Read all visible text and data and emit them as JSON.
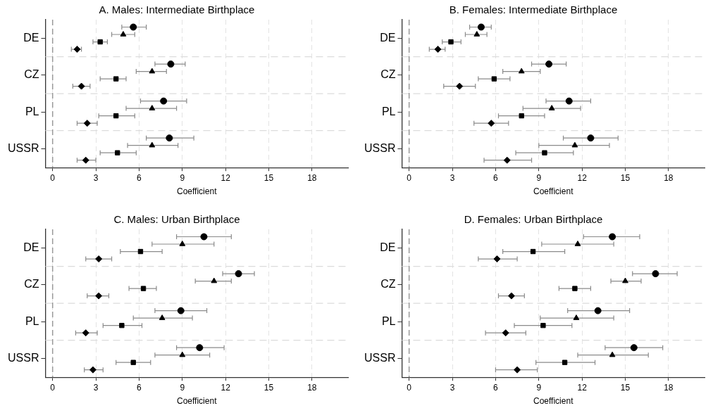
{
  "chart_data": [
    {
      "type": "scatter",
      "orientation": "horizontal",
      "title": "A. Males: Intermediate Birthplace",
      "xlabel": "Coefficient",
      "categories": [
        "DE",
        "CZ",
        "PL",
        "USSR"
      ],
      "xlim": [
        -0.5,
        20.5
      ],
      "xticks": [
        0,
        3,
        6,
        9,
        12,
        15,
        18
      ],
      "grid": true,
      "legend": false,
      "ref_lines": [
        {
          "axis": "x",
          "value": 0,
          "line_style": "dashed",
          "color": "#999999"
        }
      ],
      "series": [
        {
          "marker": "circle",
          "color": "#000000",
          "values": [
            5.6,
            8.2,
            7.7,
            8.1
          ],
          "errors": [
            [
              4.8,
              6.5
            ],
            [
              7.1,
              9.2
            ],
            [
              6.1,
              9.3
            ],
            [
              6.5,
              9.8
            ]
          ]
        },
        {
          "marker": "triangle",
          "color": "#000000",
          "values": [
            4.9,
            6.9,
            6.9,
            6.9
          ],
          "errors": [
            [
              4.1,
              5.7
            ],
            [
              5.8,
              7.9
            ],
            [
              5.1,
              8.6
            ],
            [
              5.2,
              8.7
            ]
          ]
        },
        {
          "marker": "square",
          "color": "#000000",
          "values": [
            3.3,
            4.4,
            4.4,
            4.5
          ],
          "errors": [
            [
              2.8,
              3.8
            ],
            [
              3.3,
              5.1
            ],
            [
              3.2,
              5.7
            ],
            [
              3.3,
              5.8
            ]
          ]
        },
        {
          "marker": "diamond",
          "color": "#000000",
          "values": [
            1.7,
            2.0,
            2.4,
            2.3
          ],
          "errors": [
            [
              1.3,
              2.0
            ],
            [
              1.4,
              2.6
            ],
            [
              1.7,
              3.1
            ],
            [
              1.7,
              3.0
            ]
          ]
        }
      ]
    },
    {
      "type": "scatter",
      "orientation": "horizontal",
      "title": "B. Females: Intermediate Birthplace",
      "xlabel": "Coefficient",
      "categories": [
        "DE",
        "CZ",
        "PL",
        "USSR"
      ],
      "xlim": [
        -0.5,
        20.5
      ],
      "xticks": [
        0,
        3,
        6,
        9,
        12,
        15,
        18
      ],
      "grid": true,
      "legend": false,
      "ref_lines": [
        {
          "axis": "x",
          "value": 0,
          "line_style": "dashed",
          "color": "#999999"
        }
      ],
      "series": [
        {
          "marker": "circle",
          "color": "#000000",
          "values": [
            5.0,
            9.7,
            11.1,
            12.6
          ],
          "errors": [
            [
              4.2,
              5.7
            ],
            [
              8.5,
              10.9
            ],
            [
              9.5,
              12.6
            ],
            [
              10.7,
              14.5
            ]
          ]
        },
        {
          "marker": "triangle",
          "color": "#000000",
          "values": [
            4.7,
            7.8,
            9.9,
            11.5
          ],
          "errors": [
            [
              3.9,
              5.4
            ],
            [
              6.5,
              9.1
            ],
            [
              7.9,
              11.9
            ],
            [
              9.0,
              13.9
            ]
          ]
        },
        {
          "marker": "square",
          "color": "#000000",
          "values": [
            2.9,
            5.9,
            7.8,
            9.4
          ],
          "errors": [
            [
              2.3,
              3.6
            ],
            [
              4.8,
              7.0
            ],
            [
              6.2,
              9.4
            ],
            [
              7.4,
              11.4
            ]
          ]
        },
        {
          "marker": "diamond",
          "color": "#000000",
          "values": [
            2.0,
            3.5,
            5.7,
            6.8
          ],
          "errors": [
            [
              1.4,
              2.5
            ],
            [
              2.4,
              4.6
            ],
            [
              4.5,
              6.9
            ],
            [
              5.2,
              8.5
            ]
          ]
        }
      ]
    },
    {
      "type": "scatter",
      "orientation": "horizontal",
      "title": "C. Males: Urban Birthplace",
      "xlabel": "Coefficient",
      "categories": [
        "DE",
        "CZ",
        "PL",
        "USSR"
      ],
      "xlim": [
        -0.5,
        20.5
      ],
      "xticks": [
        0,
        3,
        6,
        9,
        12,
        15,
        18
      ],
      "grid": true,
      "legend": false,
      "ref_lines": [
        {
          "axis": "x",
          "value": 0,
          "line_style": "dashed",
          "color": "#999999"
        }
      ],
      "series": [
        {
          "marker": "circle",
          "color": "#000000",
          "values": [
            10.5,
            12.9,
            8.9,
            10.2
          ],
          "errors": [
            [
              8.6,
              12.4
            ],
            [
              11.8,
              14.0
            ],
            [
              7.1,
              10.7
            ],
            [
              8.6,
              11.9
            ]
          ]
        },
        {
          "marker": "triangle",
          "color": "#000000",
          "values": [
            9.0,
            11.2,
            7.6,
            9.0
          ],
          "errors": [
            [
              6.9,
              11.2
            ],
            [
              9.9,
              12.4
            ],
            [
              5.6,
              9.7
            ],
            [
              7.1,
              10.9
            ]
          ]
        },
        {
          "marker": "square",
          "color": "#000000",
          "values": [
            6.1,
            6.3,
            4.8,
            5.6
          ],
          "errors": [
            [
              4.7,
              7.6
            ],
            [
              5.3,
              7.2
            ],
            [
              3.5,
              6.2
            ],
            [
              4.4,
              6.8
            ]
          ]
        },
        {
          "marker": "diamond",
          "color": "#000000",
          "values": [
            3.2,
            3.2,
            2.3,
            2.8
          ],
          "errors": [
            [
              2.3,
              4.1
            ],
            [
              2.4,
              3.9
            ],
            [
              1.6,
              3.1
            ],
            [
              2.2,
              3.5
            ]
          ]
        }
      ]
    },
    {
      "type": "scatter",
      "orientation": "horizontal",
      "title": "D. Females: Urban Birthplace",
      "xlabel": "Coefficient",
      "categories": [
        "DE",
        "CZ",
        "PL",
        "USSR"
      ],
      "xlim": [
        -0.5,
        20.5
      ],
      "xticks": [
        0,
        3,
        6,
        9,
        12,
        15,
        18
      ],
      "grid": true,
      "legend": false,
      "ref_lines": [
        {
          "axis": "x",
          "value": 0,
          "line_style": "dashed",
          "color": "#999999"
        }
      ],
      "series": [
        {
          "marker": "circle",
          "color": "#000000",
          "values": [
            14.1,
            17.1,
            13.1,
            15.6
          ],
          "errors": [
            [
              12.1,
              16.0
            ],
            [
              15.5,
              18.6
            ],
            [
              11.0,
              15.3
            ],
            [
              13.6,
              17.6
            ]
          ]
        },
        {
          "marker": "triangle",
          "color": "#000000",
          "values": [
            11.7,
            15.0,
            11.6,
            14.1
          ],
          "errors": [
            [
              9.2,
              14.2
            ],
            [
              14.0,
              16.1
            ],
            [
              9.1,
              14.2
            ],
            [
              11.7,
              16.6
            ]
          ]
        },
        {
          "marker": "square",
          "color": "#000000",
          "values": [
            8.6,
            11.5,
            9.3,
            10.8
          ],
          "errors": [
            [
              6.5,
              10.8
            ],
            [
              10.4,
              12.6
            ],
            [
              7.3,
              11.3
            ],
            [
              8.8,
              12.9
            ]
          ]
        },
        {
          "marker": "diamond",
          "color": "#000000",
          "values": [
            6.1,
            7.1,
            6.7,
            7.5
          ],
          "errors": [
            [
              4.8,
              7.5
            ],
            [
              6.2,
              8.0
            ],
            [
              5.3,
              8.1
            ],
            [
              6.0,
              8.9
            ]
          ]
        }
      ]
    }
  ]
}
